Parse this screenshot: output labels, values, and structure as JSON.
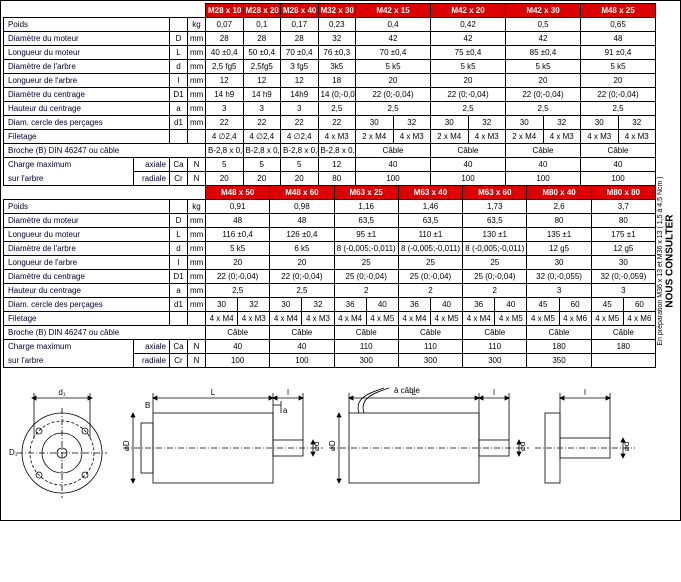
{
  "header1": [
    "M28 x 10",
    "M28 x 20",
    "M28 x 40",
    "M32 x 30",
    "M42 x 15",
    "M42 x 20",
    "M42 x 30",
    "M48 x 25"
  ],
  "header2": [
    "M48 x 50",
    "M48 x 60",
    "M63 x 25",
    "M63 x 40",
    "M63 x 60",
    "M80 x 40",
    "M80 x 80"
  ],
  "rows1": [
    {
      "label": "Poids",
      "sym": "",
      "u": "kg",
      "v": [
        "0,07",
        "0,1",
        "0,17",
        "0,23",
        "0,4",
        "0,42",
        "0,5",
        "0,65"
      ]
    },
    {
      "label": "Diamètre du moteur",
      "sym": "D",
      "u": "mm",
      "v": [
        "28",
        "28",
        "28",
        "32",
        "42",
        "42",
        "42",
        "48"
      ]
    },
    {
      "label": "Longueur du moteur",
      "sym": "L",
      "u": "mm",
      "v": [
        "40 ±0,4",
        "50 ±0,4",
        "70 ±0,4",
        "76 ±0,3",
        "70 ±0,4",
        "75 ±0,4",
        "85 ±0,4",
        "91 ±0,4"
      ]
    },
    {
      "label": "Diamètre de l'arbre",
      "sym": "d",
      "u": "mm",
      "v": [
        "2,5 fg5",
        "2,5fg5",
        "3 fg5",
        "3k5",
        "5 k5",
        "5 k5",
        "5 k5",
        "5 k5"
      ]
    },
    {
      "label": "Longueur de l'arbre",
      "sym": "l",
      "u": "mm",
      "v": [
        "12",
        "12",
        "12",
        "18",
        "20",
        "20",
        "20",
        "20"
      ]
    },
    {
      "label": "Diamètre du centrage",
      "sym": "D1",
      "u": "mm",
      "v": [
        "14 h9",
        "14 h9",
        "14h9",
        "14 (0;-0,04)",
        "22 (0;-0,04)",
        "22 (0;-0,04)",
        "22 (0;-0,04)",
        "22 (0;-0,04)"
      ]
    },
    {
      "label": "Hauteur du centrage",
      "sym": "a",
      "u": "mm",
      "v": [
        "3",
        "3",
        "3",
        "2,5",
        "2,5",
        "2,5",
        "2,5",
        "2,5"
      ]
    }
  ],
  "diam_cercle1": {
    "label": "Diam. cercle des perçages",
    "sym": "d1",
    "u": "mm",
    "v": [
      "22",
      "22",
      "22",
      "22",
      "30",
      "32",
      "30",
      "32",
      "30",
      "32",
      "30",
      "32"
    ]
  },
  "filetage1": {
    "label": "Filetage",
    "v": [
      "4 ∅2,4",
      "4 ∅2,4",
      "4 ∅2,4",
      "4 x M3",
      "2 x M4",
      "4 x M3",
      "2 x M4",
      "4 x M3",
      "2 x M4",
      "4 x M3",
      "4 x M3",
      "4 x M3"
    ]
  },
  "broche1": {
    "label": "Broche (B) DIN 46247 ou câble",
    "v": [
      "B-2,8 x 0,8",
      "B-2,8 x 0,8",
      "B-2,8 x 0,8",
      "B-2,8 x 0,8",
      "Câble",
      "Câble",
      "Câble",
      "Câble"
    ]
  },
  "charge1a": {
    "label": "Charge maximum",
    "sub": "axiale",
    "sym": "Ca",
    "u": "N",
    "v": [
      "5",
      "5",
      "5",
      "12",
      "40",
      "40",
      "40",
      "40"
    ]
  },
  "charge1r": {
    "label": "sur l'arbre",
    "sub": "radiale",
    "sym": "Cr",
    "u": "N",
    "v": [
      "20",
      "20",
      "20",
      "80",
      "100",
      "100",
      "100",
      "100"
    ]
  },
  "rows2": [
    {
      "label": "Poids",
      "sym": "",
      "u": "kg",
      "v": [
        "0,91",
        "0,98",
        "1,16",
        "1,46",
        "1,73",
        "2,6",
        "3,7"
      ]
    },
    {
      "label": "Diamètre du moteur",
      "sym": "D",
      "u": "mm",
      "v": [
        "48",
        "48",
        "63,5",
        "63,5",
        "63,5",
        "80",
        "80"
      ]
    },
    {
      "label": "Longueur du moteur",
      "sym": "L",
      "u": "mm",
      "v": [
        "116 ±0,4",
        "126 ±0,4",
        "95 ±1",
        "110 ±1",
        "130 ±1",
        "135 ±1",
        "175 ±1"
      ]
    },
    {
      "label": "Diamètre de l'arbre",
      "sym": "d",
      "u": "mm",
      "v": [
        "5 k5",
        "6 k5",
        "8 (-0,005;-0,011)",
        "8 (-0,005;-0,011)",
        "8 (-0,005;-0,011)",
        "12 g5",
        "12 g5"
      ]
    },
    {
      "label": "Longueur de l'arbre",
      "sym": "l",
      "u": "mm",
      "v": [
        "20",
        "20",
        "25",
        "25",
        "25",
        "30",
        "30"
      ]
    },
    {
      "label": "Diamètre du centrage",
      "sym": "D1",
      "u": "mm",
      "v": [
        "22 (0;-0,04)",
        "22 (0;-0,04)",
        "25 (0;-0,04)",
        "25 (0;-0,04)",
        "25 (0;-0,04)",
        "32 (0;-0,055)",
        "32 (0;-0,059)"
      ]
    },
    {
      "label": "Hauteur du centrage",
      "sym": "a",
      "u": "mm",
      "v": [
        "2,5",
        "2,5",
        "2",
        "2",
        "2",
        "3",
        "3"
      ]
    }
  ],
  "diam_cercle2": {
    "label": "Diam. cercle des perçages",
    "sym": "d1",
    "u": "mm",
    "v": [
      "30",
      "32",
      "30",
      "32",
      "36",
      "40",
      "36",
      "40",
      "36",
      "40",
      "45",
      "60",
      "45",
      "60"
    ]
  },
  "filetage2": {
    "label": "Filetage",
    "v": [
      "4 x M4",
      "4 x M3",
      "4 x M4",
      "4 x M3",
      "4 x M4",
      "4 x M5",
      "4 x M4",
      "4 x M5",
      "4 x M4",
      "4 x M5",
      "4 x M5",
      "4 x M6",
      "4 x M5",
      "4 x M6"
    ]
  },
  "broche2": {
    "label": "Broche (B) DIN 46247 ou câble",
    "v": [
      "Câble",
      "Câble",
      "Câble",
      "Câble",
      "Câble",
      "Câble",
      "Câble"
    ]
  },
  "charge2a": {
    "label": "Charge maximum",
    "sub": "axiale",
    "sym": "Ca",
    "u": "N",
    "v": [
      "40",
      "40",
      "110",
      "110",
      "110",
      "180",
      "180"
    ]
  },
  "charge2r": {
    "label": "sur l'arbre",
    "sub": "radiale",
    "sym": "Cr",
    "u": "N",
    "v": [
      "100",
      "100",
      "300",
      "300",
      "300",
      "350",
      ""
    ]
  },
  "side": {
    "line1": "En préparation M36 x 13 et M36 x 13 ( 1,5 à 4,5 Ncm )",
    "line2": "NOUS CONSULTER"
  },
  "diag_labels": {
    "d1": "d₁",
    "D1": "D₁",
    "a": "a",
    "L": "L",
    "l": "l",
    "B": "B",
    "d": "⌀d",
    "D": "⌀D",
    "cable": "à câble"
  }
}
